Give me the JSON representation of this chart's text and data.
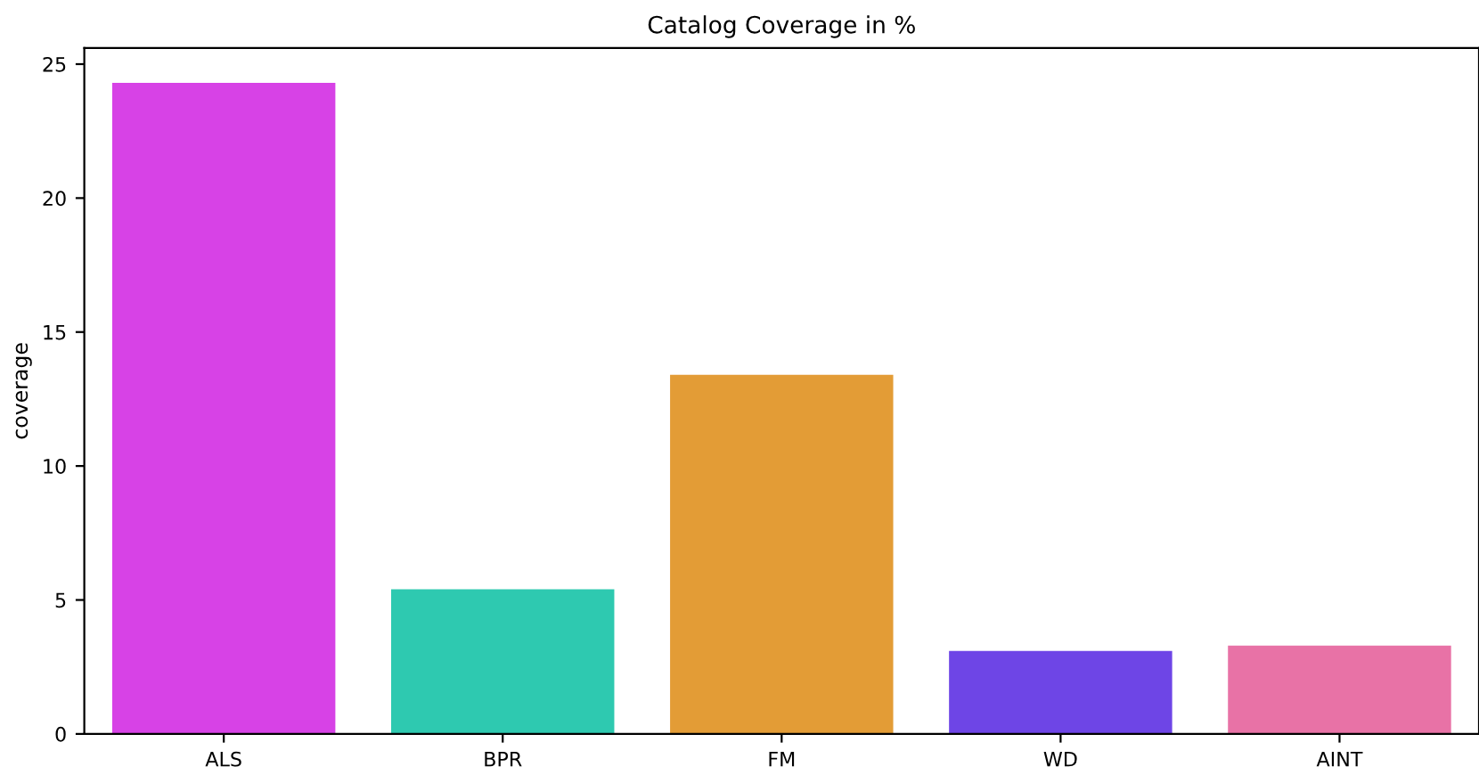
{
  "chart_data": {
    "type": "bar",
    "title": "Catalog Coverage in %",
    "ylabel": "coverage",
    "categories": [
      "ALS",
      "BPR",
      "FM",
      "WD",
      "AINT"
    ],
    "values": [
      24.3,
      5.4,
      13.4,
      3.1,
      3.3
    ],
    "colors": [
      "#d742e6",
      "#2ec9b0",
      "#e39c36",
      "#6e45e6",
      "#e872a6"
    ],
    "ylim": [
      0,
      25.6
    ],
    "yticks": [
      0,
      5,
      10,
      15,
      20,
      25
    ],
    "grid": false
  }
}
